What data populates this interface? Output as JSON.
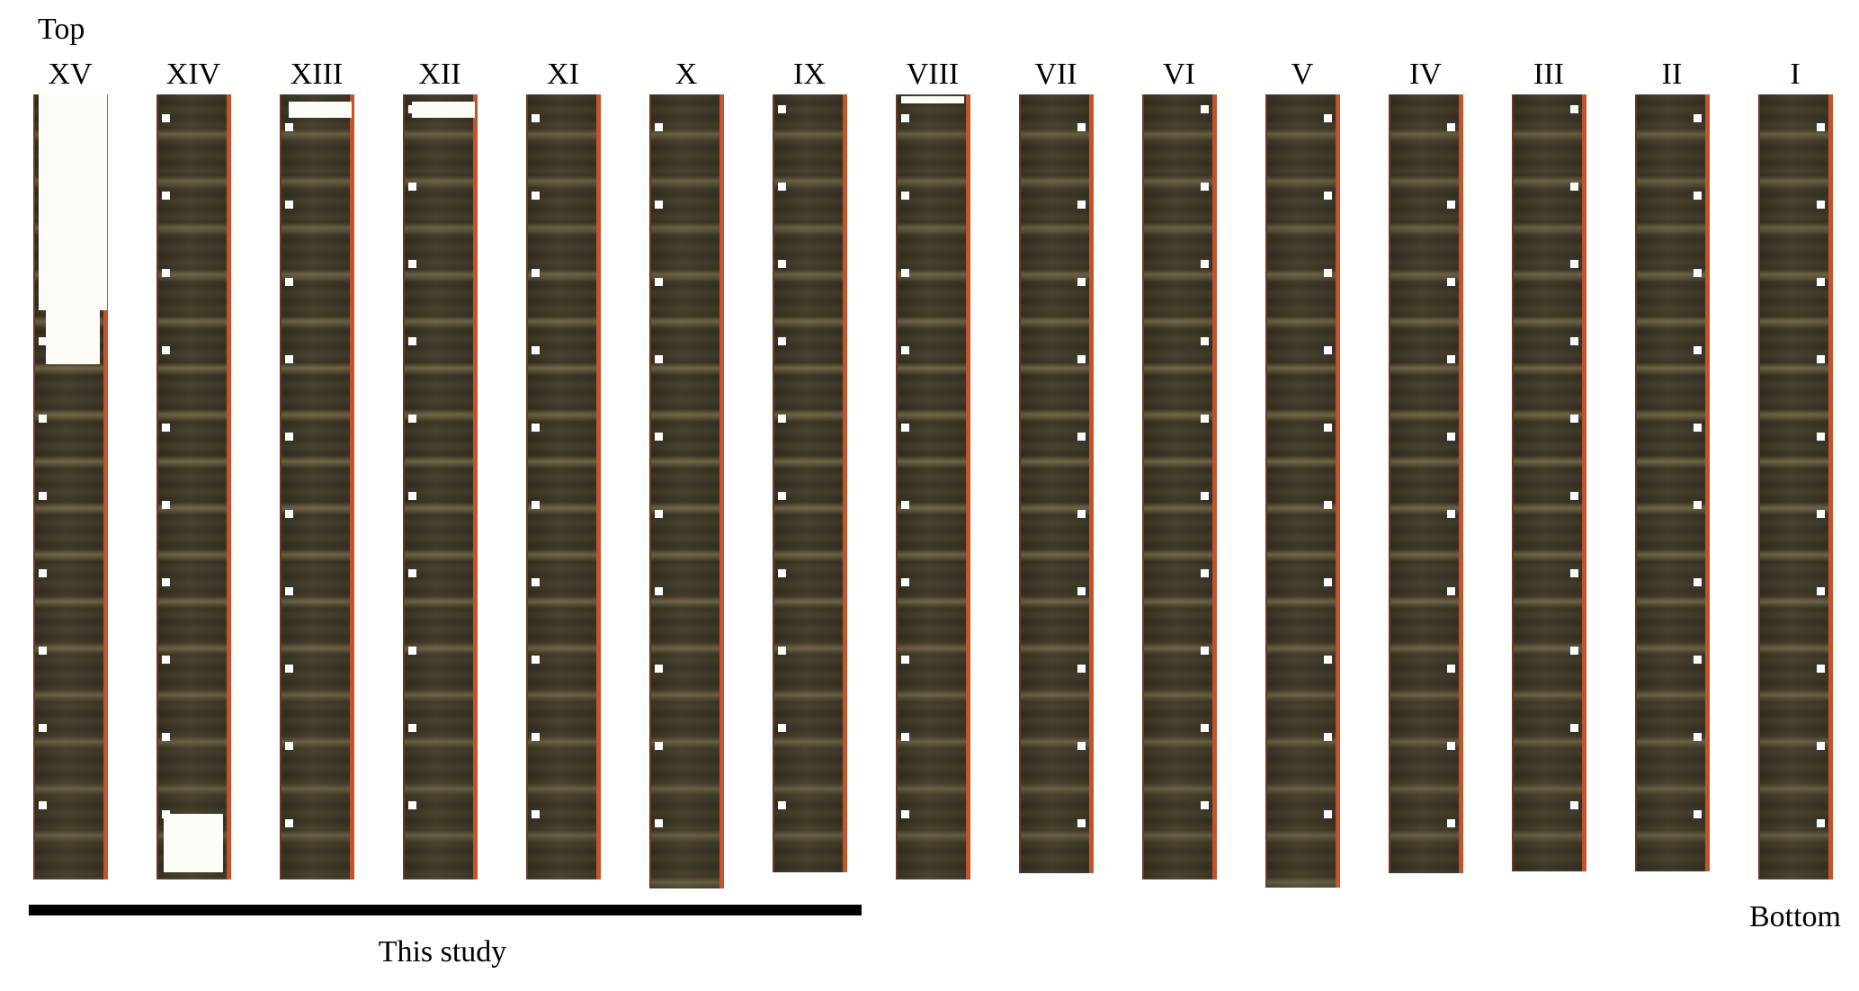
{
  "header": {
    "top_label": "Top"
  },
  "cores": [
    {
      "label": "XV"
    },
    {
      "label": "XIV"
    },
    {
      "label": "XIII"
    },
    {
      "label": "XII"
    },
    {
      "label": "XI"
    },
    {
      "label": "X"
    },
    {
      "label": "IX"
    },
    {
      "label": "VIII"
    },
    {
      "label": "VII"
    },
    {
      "label": "VI"
    },
    {
      "label": "V"
    },
    {
      "label": "IV"
    },
    {
      "label": "III"
    },
    {
      "label": "II"
    },
    {
      "label": "I"
    }
  ],
  "footer": {
    "bottom_label": "Bottom",
    "study_label": "This study"
  }
}
